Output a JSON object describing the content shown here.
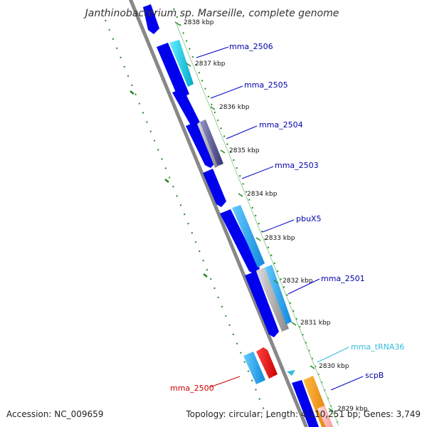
{
  "title": "Janthinobacterium sp. Marseille, complete genome",
  "accession": "Accession: NC_009659",
  "summary": "Topology: circular; Length: 4,110,251 bp; Genes: 3,749",
  "kbp_ticks": [
    "2838 kbp",
    "2837 kbp",
    "2836 kbp",
    "2835 kbp",
    "2834 kbp",
    "2833 kbp",
    "2832 kbp",
    "2831 kbp",
    "2830 kbp",
    "2829 kbp"
  ],
  "gene_labels": [
    {
      "name": "mma_2506",
      "color": "#0000aa"
    },
    {
      "name": "mma_2505",
      "color": "#0000aa"
    },
    {
      "name": "mma_2504",
      "color": "#0000aa"
    },
    {
      "name": "mma_2503",
      "color": "#0000aa"
    },
    {
      "name": "pbuX5",
      "color": "#0000aa"
    },
    {
      "name": "mma_2501",
      "color": "#0000aa"
    },
    {
      "name": "mma_tRNA36",
      "color": "#33bbdd"
    },
    {
      "name": "scpB",
      "color": "#0000aa"
    },
    {
      "name": "mma_2500",
      "color": "#cc0000"
    }
  ],
  "colors": {
    "backbone": "#888888",
    "cds_forward": "#0000ee",
    "gene_cyan": "#22ccee",
    "gene_lightblue": "#44aaee",
    "gene_grey": "#bbbbbb",
    "gene_slate": "#444488",
    "gene_red": "#ee0000",
    "gene_orange": "#ff8800",
    "gene_pink": "#ffaaaa",
    "gc_skew": "#228822"
  }
}
